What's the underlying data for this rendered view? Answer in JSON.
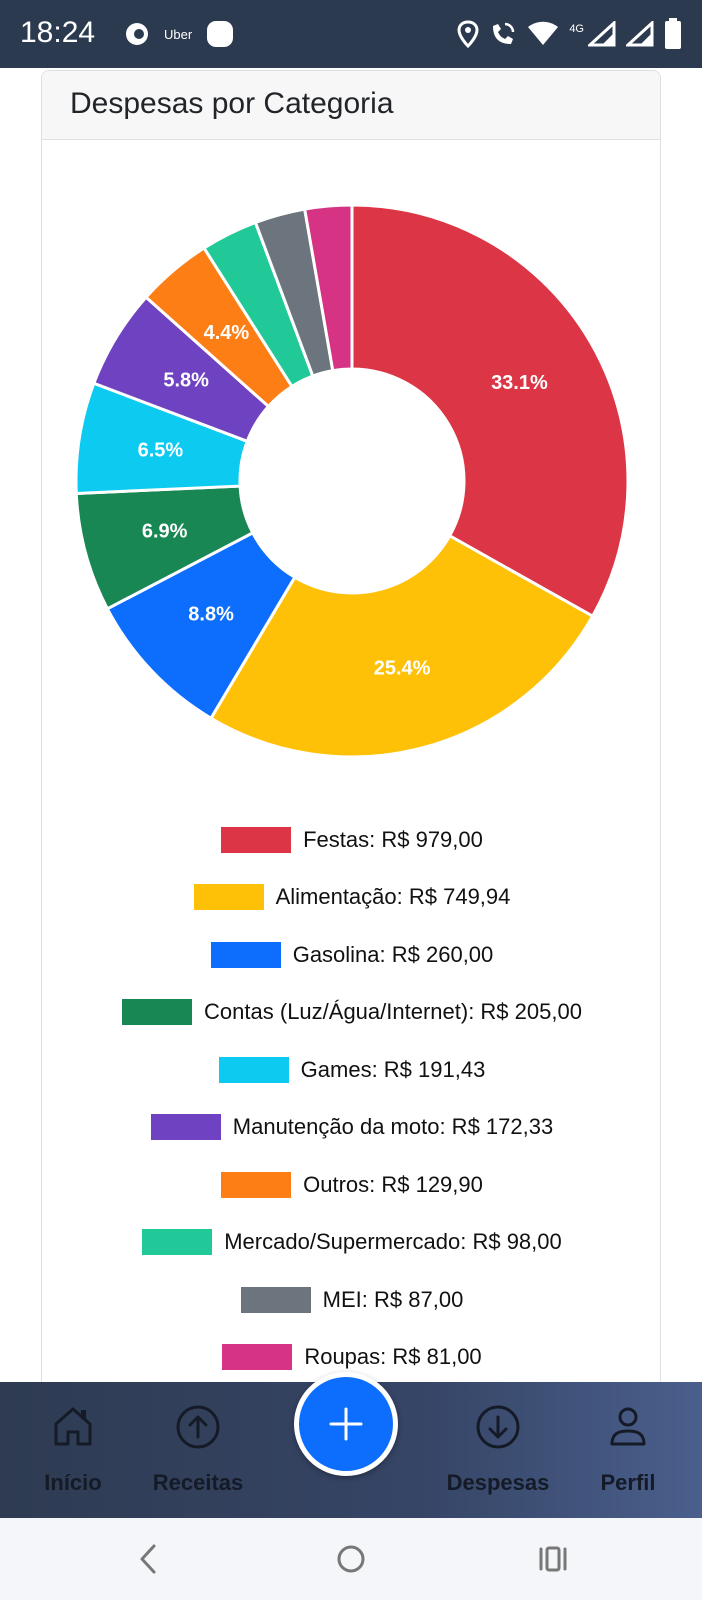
{
  "status_bar": {
    "time": "18:24",
    "uber_label": "Uber",
    "network_label": "4G",
    "icons": [
      "notification-icon",
      "location-icon",
      "wifi-call-icon",
      "wifi-icon",
      "signal-icon",
      "battery-icon"
    ]
  },
  "card": {
    "title": "Despesas por Categoria"
  },
  "chart_data": {
    "type": "pie",
    "donut": true,
    "categories": [
      "Festas",
      "Alimentação",
      "Gasolina",
      "Contas (Luz/Água/Internet)",
      "Games",
      "Manutenção da moto",
      "Outros",
      "Mercado/Supermercado",
      "MEI",
      "Roupas"
    ],
    "values": [
      979.0,
      749.94,
      260.0,
      205.0,
      191.43,
      172.33,
      129.9,
      98.0,
      87.0,
      81.0
    ],
    "percent_labels": [
      "33.1%",
      "25.4%",
      "8.8%",
      "6.9%",
      "6.5%",
      "5.8%",
      "4.4%",
      "",
      "",
      ""
    ],
    "colors": [
      "#dc3545",
      "#ffc107",
      "#0d6efd",
      "#198754",
      "#0dcaf0",
      "#6f42c1",
      "#fd7e14",
      "#20c997",
      "#6c757d",
      "#d63384"
    ],
    "legend": [
      "Festas: R$ 979,00",
      "Alimentação: R$ 749,94",
      "Gasolina: R$ 260,00",
      "Contas (Luz/Água/Internet): R$ 205,00",
      "Games: R$ 191,43",
      "Manutenção da moto: R$ 172,33",
      "Outros: R$ 129,90",
      "Mercado/Supermercado: R$ 98,00",
      "MEI: R$ 87,00",
      "Roupas: R$ 81,00"
    ],
    "legend_placement": "bottom"
  },
  "bottom_nav": {
    "items": [
      {
        "label": "Início",
        "icon": "home-icon"
      },
      {
        "label": "Receitas",
        "icon": "arrow-up-circle-icon"
      },
      {
        "label": "Despesas",
        "icon": "arrow-down-circle-icon"
      },
      {
        "label": "Perfil",
        "icon": "person-icon"
      }
    ],
    "fab_icon": "plus-icon"
  },
  "system_nav": {
    "icons": [
      "back-icon",
      "home-circle-icon",
      "recents-icon"
    ]
  }
}
